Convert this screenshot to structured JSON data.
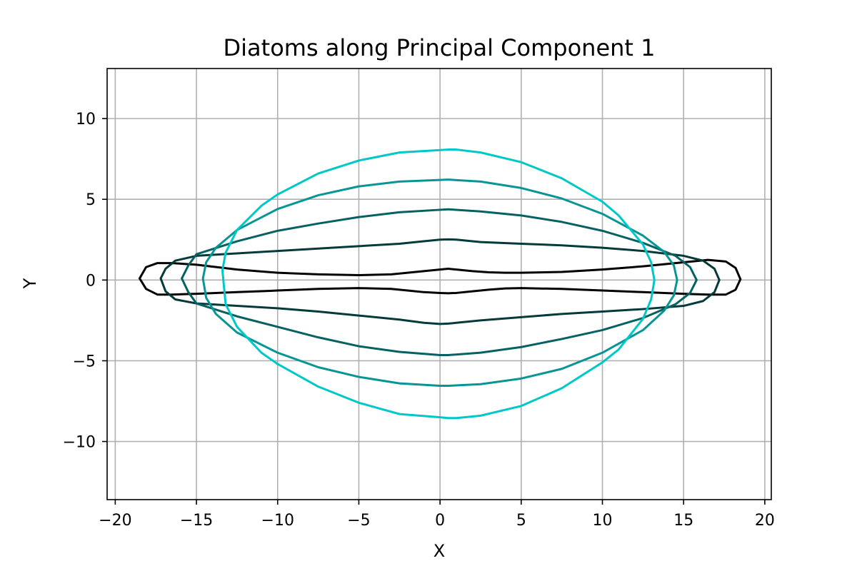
{
  "chart_data": {
    "type": "line",
    "title": "Diatoms along Principal Component 1",
    "xlabel": "X",
    "ylabel": "Y",
    "xlim": [
      -20.5,
      20.4
    ],
    "ylim": [
      -13.6,
      13.1
    ],
    "xticks": [
      -20,
      -15,
      -10,
      -5,
      0,
      5,
      10,
      15,
      20
    ],
    "xtick_labels": [
      "−20",
      "−15",
      "−10",
      "−5",
      "0",
      "5",
      "10",
      "15",
      "20"
    ],
    "yticks": [
      -10,
      -5,
      0,
      5,
      10
    ],
    "ytick_labels": [
      "−10",
      "−5",
      "0",
      "5",
      "10"
    ],
    "grid": true,
    "legend": "none",
    "series": [
      {
        "name": "shape-1",
        "color": "#000000",
        "x": [
          -18.5,
          -18.1,
          -17.4,
          -16.5,
          -15.0,
          -12.5,
          -10.0,
          -7.5,
          -5.0,
          -3.0,
          -2.0,
          -1.0,
          0.0,
          0.5,
          1.0,
          2.0,
          3.0,
          4.0,
          5.0,
          7.5,
          10.0,
          12.5,
          15.0,
          16.5,
          17.6,
          18.2,
          18.5,
          18.2,
          17.6,
          16.5,
          15.0,
          12.5,
          10.0,
          7.5,
          5.0,
          4.0,
          3.0,
          2.0,
          1.0,
          0.5,
          0.0,
          -1.0,
          -2.0,
          -3.0,
          -5.0,
          -7.5,
          -10.0,
          -12.5,
          -15.0,
          -16.5,
          -17.4,
          -18.1,
          -18.5
        ],
        "y": [
          0.1,
          0.8,
          1.05,
          1.05,
          0.95,
          0.65,
          0.45,
          0.35,
          0.3,
          0.35,
          0.45,
          0.55,
          0.65,
          0.7,
          0.65,
          0.55,
          0.48,
          0.45,
          0.45,
          0.5,
          0.65,
          0.85,
          1.1,
          1.25,
          1.15,
          0.75,
          0.05,
          -0.6,
          -0.9,
          -0.9,
          -0.85,
          -0.75,
          -0.65,
          -0.55,
          -0.5,
          -0.52,
          -0.6,
          -0.7,
          -0.8,
          -0.82,
          -0.8,
          -0.75,
          -0.65,
          -0.55,
          -0.5,
          -0.55,
          -0.65,
          -0.75,
          -0.85,
          -0.9,
          -0.9,
          -0.55,
          0.1
        ]
      },
      {
        "name": "shape-2",
        "color": "#043a3a",
        "x": [
          -17.2,
          -16.9,
          -16.3,
          -15.0,
          -12.5,
          -10.0,
          -7.5,
          -5.0,
          -2.5,
          -1.0,
          0.0,
          0.5,
          1.0,
          2.5,
          5.0,
          7.5,
          10.0,
          12.5,
          15.0,
          16.2,
          16.9,
          17.2,
          16.9,
          16.2,
          15.0,
          12.5,
          10.0,
          7.5,
          5.0,
          2.5,
          1.0,
          0.5,
          0.0,
          -1.0,
          -2.5,
          -5.0,
          -7.5,
          -10.0,
          -12.5,
          -15.0,
          -16.3,
          -16.9,
          -17.2
        ],
        "y": [
          0.1,
          0.7,
          1.2,
          1.5,
          1.65,
          1.8,
          1.95,
          2.1,
          2.25,
          2.4,
          2.5,
          2.52,
          2.5,
          2.35,
          2.25,
          2.15,
          2.0,
          1.8,
          1.5,
          1.2,
          0.7,
          0.0,
          -0.75,
          -1.3,
          -1.6,
          -1.8,
          -1.95,
          -2.1,
          -2.3,
          -2.5,
          -2.65,
          -2.7,
          -2.72,
          -2.65,
          -2.45,
          -2.2,
          -1.95,
          -1.75,
          -1.6,
          -1.45,
          -1.2,
          -0.7,
          0.1
        ]
      },
      {
        "name": "shape-3",
        "color": "#066262",
        "x": [
          -15.9,
          -15.5,
          -15.0,
          -12.5,
          -10.0,
          -7.5,
          -5.0,
          -2.5,
          0.0,
          0.5,
          2.5,
          5.0,
          7.5,
          10.0,
          12.5,
          14.5,
          15.4,
          15.8,
          15.4,
          14.5,
          12.5,
          10.0,
          7.5,
          5.0,
          2.5,
          0.5,
          0.0,
          -2.5,
          -5.0,
          -7.5,
          -10.0,
          -12.5,
          -15.0,
          -15.5,
          -15.9
        ],
        "y": [
          0.1,
          0.9,
          1.6,
          2.4,
          3.05,
          3.5,
          3.9,
          4.2,
          4.35,
          4.38,
          4.25,
          4.0,
          3.6,
          3.05,
          2.3,
          1.5,
          0.8,
          0.0,
          -0.8,
          -1.5,
          -2.35,
          -3.1,
          -3.65,
          -4.15,
          -4.5,
          -4.65,
          -4.65,
          -4.45,
          -4.1,
          -3.55,
          -2.9,
          -2.25,
          -1.45,
          -0.75,
          0.1
        ]
      },
      {
        "name": "shape-4",
        "color": "#089595",
        "x": [
          -14.6,
          -14.4,
          -13.8,
          -12.5,
          -10.0,
          -7.5,
          -5.0,
          -2.5,
          0.0,
          0.5,
          2.5,
          5.0,
          7.5,
          10.0,
          12.5,
          13.8,
          14.4,
          14.6,
          14.4,
          13.8,
          12.5,
          10.0,
          7.5,
          5.0,
          2.5,
          0.5,
          0.0,
          -2.5,
          -5.0,
          -7.5,
          -10.0,
          -12.5,
          -13.8,
          -14.4,
          -14.6
        ],
        "y": [
          0.1,
          1.1,
          2.0,
          3.1,
          4.4,
          5.25,
          5.8,
          6.1,
          6.2,
          6.22,
          6.1,
          5.7,
          5.05,
          4.1,
          2.75,
          1.75,
          0.9,
          0.0,
          -0.95,
          -1.9,
          -3.1,
          -4.5,
          -5.5,
          -6.1,
          -6.45,
          -6.55,
          -6.55,
          -6.4,
          -6.0,
          -5.4,
          -4.5,
          -3.25,
          -2.1,
          -1.1,
          0.1
        ]
      },
      {
        "name": "shape-5",
        "color": "#00c8c8",
        "x": [
          -13.4,
          -13.2,
          -12.5,
          -11.0,
          -10.0,
          -7.5,
          -5.0,
          -2.5,
          0.0,
          0.5,
          1.0,
          2.5,
          5.0,
          7.5,
          10.0,
          11.0,
          12.5,
          13.0,
          13.2,
          13.0,
          12.5,
          11.0,
          10.0,
          7.5,
          5.0,
          2.5,
          1.0,
          0.5,
          0.0,
          -2.5,
          -5.0,
          -7.5,
          -10.0,
          -11.0,
          -12.5,
          -13.2,
          -13.4
        ],
        "y": [
          0.6,
          1.7,
          3.1,
          4.6,
          5.3,
          6.6,
          7.4,
          7.9,
          8.05,
          8.08,
          8.08,
          7.9,
          7.3,
          6.3,
          4.85,
          4.0,
          2.2,
          1.1,
          0.0,
          -1.2,
          -2.4,
          -4.3,
          -5.1,
          -6.7,
          -7.8,
          -8.4,
          -8.55,
          -8.55,
          -8.5,
          -8.3,
          -7.6,
          -6.6,
          -5.2,
          -4.5,
          -2.9,
          -1.5,
          0.6
        ]
      }
    ]
  }
}
